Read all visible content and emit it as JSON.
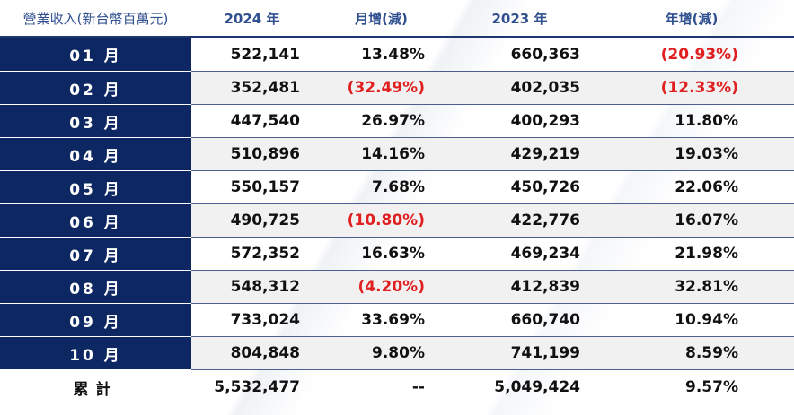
{
  "header": {
    "label": "營業收入(新台幣百萬元)",
    "y2024": "2024 年",
    "mom": "月增(減)",
    "y2023": "2023 年",
    "yoy": "年增(減)"
  },
  "rows": [
    {
      "month": "01 月",
      "rev2024": "522,141",
      "mom": "13.48%",
      "rev2023": "660,363",
      "yoy": "(20.93%)"
    },
    {
      "month": "02 月",
      "rev2024": "352,481",
      "mom": "(32.49%)",
      "rev2023": "402,035",
      "yoy": "(12.33%)"
    },
    {
      "month": "03 月",
      "rev2024": "447,540",
      "mom": "26.97%",
      "rev2023": "400,293",
      "yoy": "11.80%"
    },
    {
      "month": "04 月",
      "rev2024": "510,896",
      "mom": "14.16%",
      "rev2023": "429,219",
      "yoy": "19.03%"
    },
    {
      "month": "05 月",
      "rev2024": "550,157",
      "mom": "7.68%",
      "rev2023": "450,726",
      "yoy": "22.06%"
    },
    {
      "month": "06 月",
      "rev2024": "490,725",
      "mom": "(10.80%)",
      "rev2023": "422,776",
      "yoy": "16.07%"
    },
    {
      "month": "07 月",
      "rev2024": "572,352",
      "mom": "16.63%",
      "rev2023": "469,234",
      "yoy": "21.98%"
    },
    {
      "month": "08 月",
      "rev2024": "548,312",
      "mom": "(4.20%)",
      "rev2023": "412,839",
      "yoy": "32.81%"
    },
    {
      "month": "09 月",
      "rev2024": "733,024",
      "mom": "33.69%",
      "rev2023": "660,740",
      "yoy": "10.94%"
    },
    {
      "month": "10 月",
      "rev2024": "804,848",
      "mom": "9.80%",
      "rev2023": "741,199",
      "yoy": "8.59%"
    }
  ],
  "total": {
    "label": "累計",
    "rev2024": "5,532,477",
    "mom": "--",
    "rev2023": "5,049,424",
    "yoy": "9.57%"
  },
  "colors": {
    "navy": "#0d2763",
    "header_text": "#2f4f8f",
    "negative": "#e02020",
    "row_alt": "#f1f1f2"
  }
}
